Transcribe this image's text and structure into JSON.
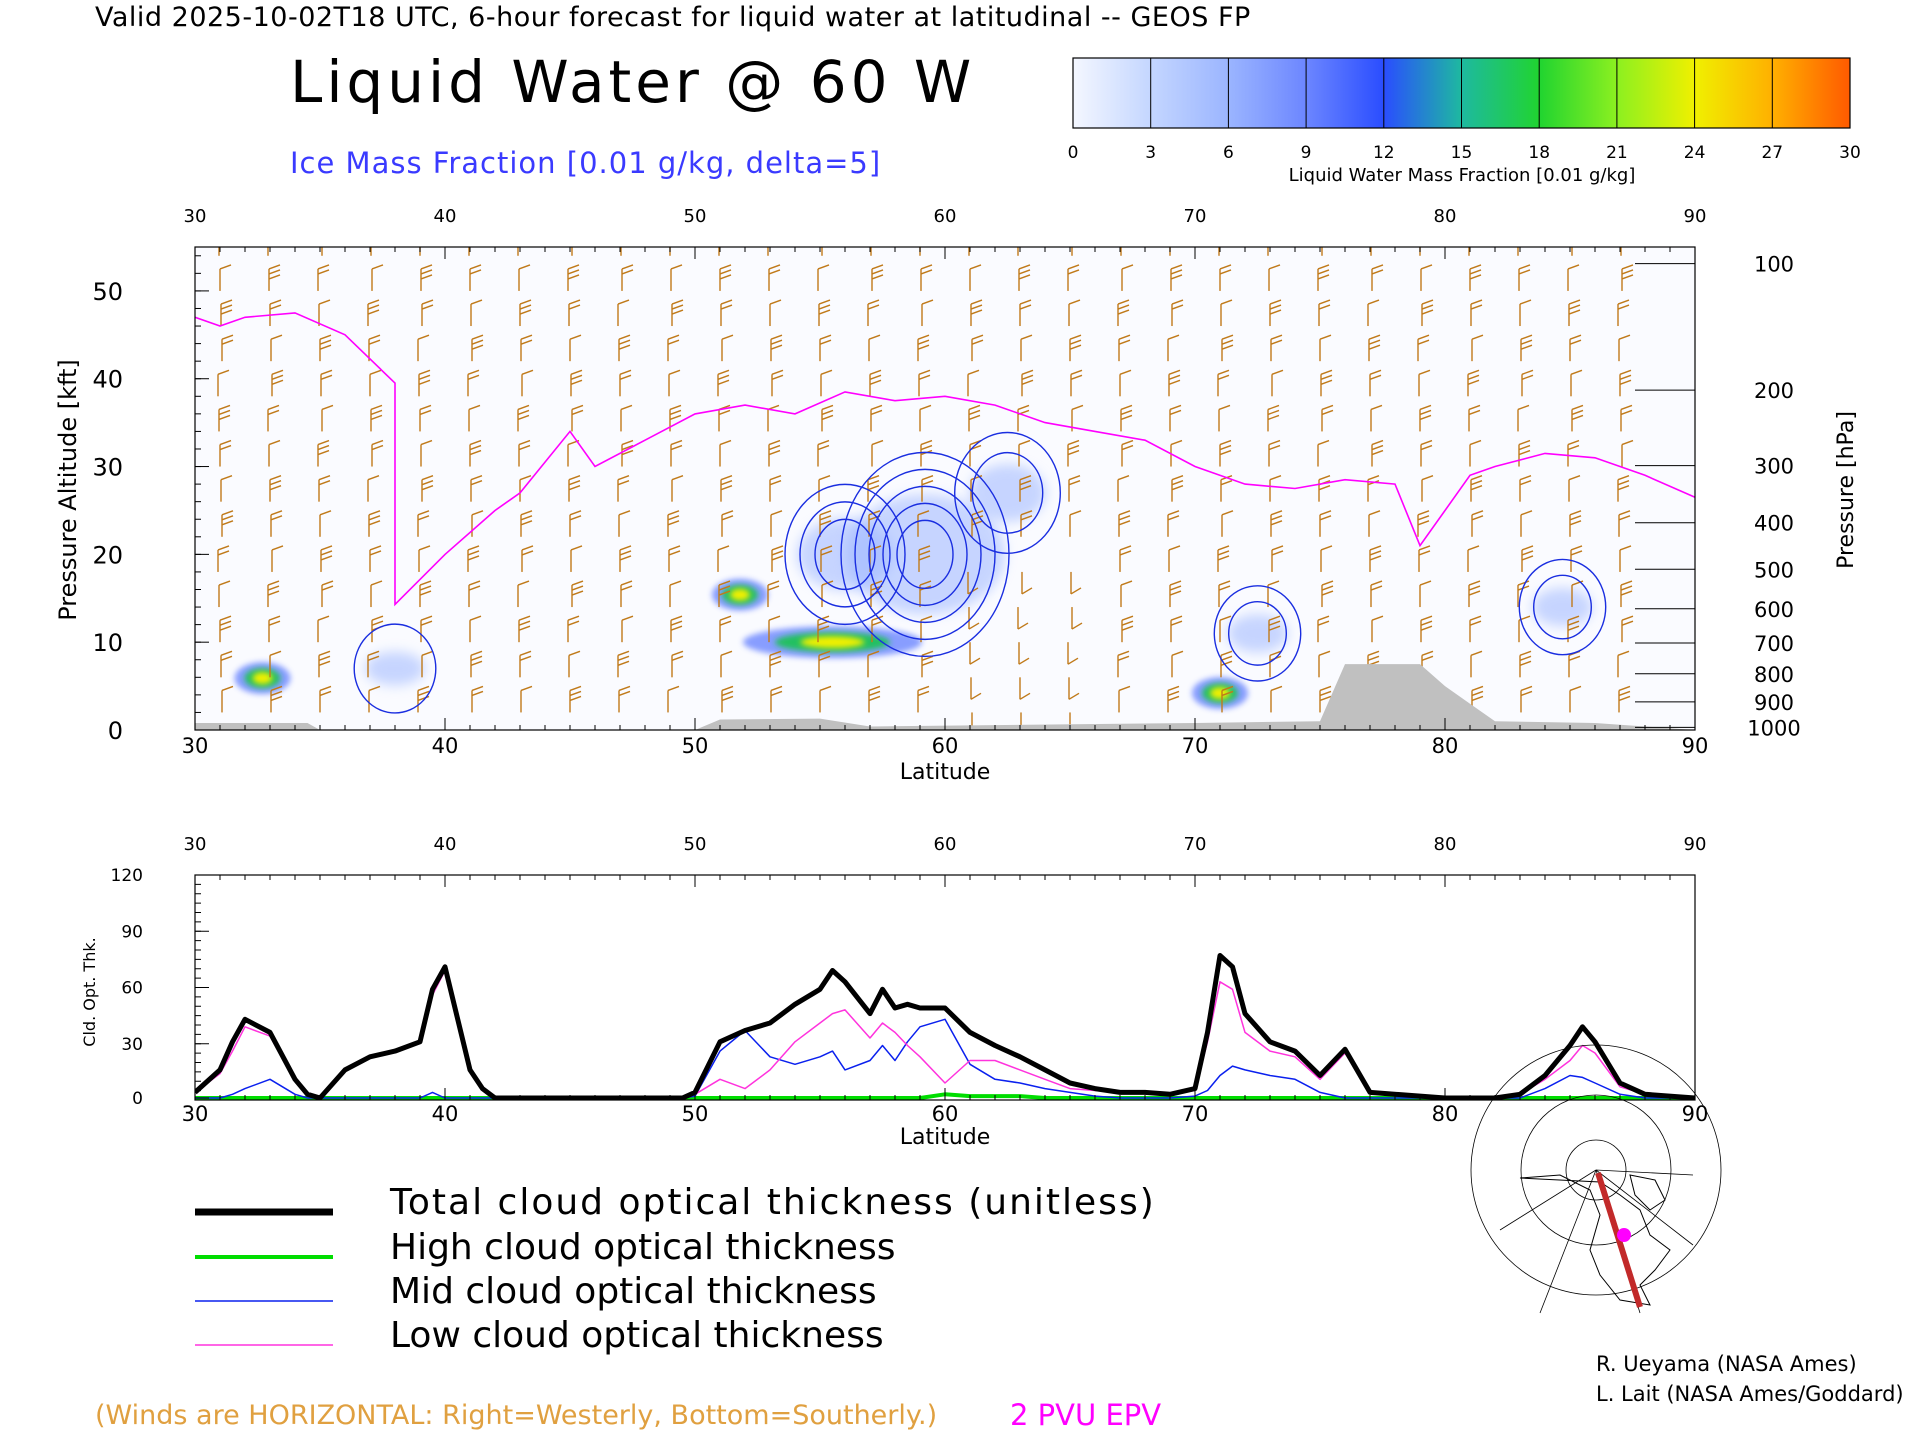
{
  "header": {
    "valid_line": "Valid 2025-10-02T18 UTC, 6-hour forecast for liquid water at latitudinal -- GEOS FP",
    "title": "Liquid Water @ 60 W",
    "subtitle": "Ice Mass Fraction [0.01 g/kg, delta=5]"
  },
  "colorbar": {
    "ticks": [
      "0",
      "3",
      "6",
      "9",
      "12",
      "15",
      "18",
      "21",
      "24",
      "27",
      "30"
    ],
    "label": "Liquid Water Mass Fraction [0.01 g/kg]",
    "colors": [
      "#f4f7ff",
      "#c4d6ff",
      "#9bb5ff",
      "#6c86ff",
      "#2a4dff",
      "#1eb9a0",
      "#20d430",
      "#8cf020",
      "#f0f000",
      "#ffb000",
      "#ff5a00"
    ]
  },
  "colors": {
    "wind_barbs": "#c07a1a",
    "epv": "#ff00ff",
    "ice_contour": "#1a2ee0",
    "total": "#000000",
    "high": "#00dd00",
    "mid": "#0a20ee",
    "low": "#ff33dd"
  },
  "chart_data": [
    {
      "type": "heatmap",
      "title": "Liquid Water @ 60 W",
      "xlabel": "Latitude",
      "ylabel": "Pressure Altitude [kft]",
      "ylabel_right": "Pressure [hPa]",
      "xlim": [
        30,
        90
      ],
      "ylim": [
        0,
        55
      ],
      "x_ticks": [
        30,
        40,
        50,
        60,
        70,
        80,
        90
      ],
      "y_ticks": [
        0,
        10,
        20,
        30,
        40,
        50
      ],
      "pressure_ticks": [
        {
          "label": "100",
          "kft": 53.1
        },
        {
          "label": "200",
          "kft": 38.7
        },
        {
          "label": "300",
          "kft": 30.1
        },
        {
          "label": "400",
          "kft": 23.6
        },
        {
          "label": "500",
          "kft": 18.3
        },
        {
          "label": "600",
          "kft": 13.8
        },
        {
          "label": "700",
          "kft": 9.9
        },
        {
          "label": "800",
          "kft": 6.4
        },
        {
          "label": "900",
          "kft": 3.2
        },
        {
          "label": "1000",
          "kft": 0.3
        }
      ],
      "liquid_water_cores": [
        {
          "lat": 32.7,
          "kft": 5.9,
          "max": 24
        },
        {
          "lat": 51.8,
          "kft": 15.4,
          "max": 24
        },
        {
          "lat": 55.5,
          "kft": 10.0,
          "max": 24
        },
        {
          "lat": 71.0,
          "kft": 4.2,
          "max": 21
        }
      ],
      "ice_cores": [
        {
          "lat": 38.0,
          "kft": 7.0,
          "max": 7
        },
        {
          "lat": 56.0,
          "kft": 20.0,
          "max": 15
        },
        {
          "lat": 59.2,
          "kft": 20.0,
          "max": 25
        },
        {
          "lat": 62.5,
          "kft": 27.0,
          "max": 12
        },
        {
          "lat": 72.5,
          "kft": 11.0,
          "max": 8
        },
        {
          "lat": 84.7,
          "kft": 14.0,
          "max": 8
        }
      ],
      "epv_2pvu_kft": [
        {
          "lat": 30,
          "kft": 47.0
        },
        {
          "lat": 31,
          "kft": 46.0
        },
        {
          "lat": 32,
          "kft": 47.0
        },
        {
          "lat": 34,
          "kft": 47.5
        },
        {
          "lat": 36,
          "kft": 45.0
        },
        {
          "lat": 38,
          "kft": 39.5
        },
        {
          "lat": 38,
          "kft": 14.3
        },
        {
          "lat": 40,
          "kft": 20.0
        },
        {
          "lat": 42,
          "kft": 25.0
        },
        {
          "lat": 43,
          "kft": 27.0
        },
        {
          "lat": 45,
          "kft": 34.0
        },
        {
          "lat": 46,
          "kft": 30.0
        },
        {
          "lat": 48,
          "kft": 33.0
        },
        {
          "lat": 50,
          "kft": 36.0
        },
        {
          "lat": 52,
          "kft": 37.0
        },
        {
          "lat": 54,
          "kft": 36.0
        },
        {
          "lat": 56,
          "kft": 38.5
        },
        {
          "lat": 58,
          "kft": 37.5
        },
        {
          "lat": 60,
          "kft": 38.0
        },
        {
          "lat": 62,
          "kft": 37.0
        },
        {
          "lat": 64,
          "kft": 35.0
        },
        {
          "lat": 66,
          "kft": 34.0
        },
        {
          "lat": 68,
          "kft": 33.0
        },
        {
          "lat": 70,
          "kft": 30.0
        },
        {
          "lat": 72,
          "kft": 28.0
        },
        {
          "lat": 74,
          "kft": 27.5
        },
        {
          "lat": 76,
          "kft": 28.5
        },
        {
          "lat": 78,
          "kft": 28.0
        },
        {
          "lat": 79,
          "kft": 21.0
        },
        {
          "lat": 80,
          "kft": 25.0
        },
        {
          "lat": 81,
          "kft": 29.0
        },
        {
          "lat": 82,
          "kft": 30.0
        },
        {
          "lat": 84,
          "kft": 31.5
        },
        {
          "lat": 86,
          "kft": 31.0
        },
        {
          "lat": 88,
          "kft": 29.0
        },
        {
          "lat": 90,
          "kft": 26.5
        }
      ],
      "terrain_kft": [
        {
          "lat": 30,
          "kft": 0.8
        },
        {
          "lat": 34.5,
          "kft": 0.8
        },
        {
          "lat": 35,
          "kft": 0.0
        },
        {
          "lat": 50,
          "kft": 0.0
        },
        {
          "lat": 51,
          "kft": 1.2
        },
        {
          "lat": 55,
          "kft": 1.3
        },
        {
          "lat": 57,
          "kft": 0.4
        },
        {
          "lat": 70,
          "kft": 0.8
        },
        {
          "lat": 75,
          "kft": 1.0
        },
        {
          "lat": 76,
          "kft": 7.5
        },
        {
          "lat": 79,
          "kft": 7.5
        },
        {
          "lat": 80,
          "kft": 5.0
        },
        {
          "lat": 81,
          "kft": 3.0
        },
        {
          "lat": 82,
          "kft": 1.0
        },
        {
          "lat": 86,
          "kft": 0.8
        },
        {
          "lat": 90,
          "kft": 0.0
        }
      ]
    },
    {
      "type": "line",
      "xlabel": "Latitude",
      "ylabel": "Cld. Opt. Thk.",
      "xlim": [
        30,
        90
      ],
      "ylim": [
        0,
        120
      ],
      "x_ticks": [
        30,
        40,
        50,
        60,
        70,
        80,
        90
      ],
      "y_ticks": [
        0,
        30,
        60,
        90,
        120
      ],
      "x": [
        30,
        31,
        31.5,
        32,
        33,
        34,
        34.5,
        35,
        36,
        37,
        38,
        39,
        39.5,
        40,
        41,
        41.5,
        42,
        45,
        48,
        49.5,
        50,
        51,
        52,
        53,
        54,
        55,
        55.5,
        56,
        57,
        57.5,
        58,
        58.5,
        59,
        60,
        61,
        62,
        63,
        64,
        65,
        66,
        67,
        68,
        69,
        70,
        70.5,
        71,
        71.5,
        72,
        73,
        74,
        75,
        76,
        77,
        80,
        82,
        83,
        84,
        85,
        85.5,
        86,
        87,
        88,
        90
      ],
      "series": [
        {
          "name": "Total cloud optical thickness (unitless)",
          "values": [
            3,
            15,
            30,
            42,
            35,
            10,
            2,
            0,
            15,
            22,
            25,
            30,
            58,
            70,
            15,
            5,
            0,
            0,
            0,
            0,
            3,
            30,
            36,
            40,
            50,
            58,
            68,
            62,
            45,
            58,
            48,
            50,
            48,
            48,
            35,
            28,
            22,
            15,
            8,
            5,
            3,
            3,
            2,
            5,
            35,
            76,
            70,
            45,
            30,
            25,
            12,
            26,
            3,
            0,
            0,
            2,
            12,
            28,
            38,
            30,
            8,
            2,
            0
          ]
        },
        {
          "name": "High cloud optical thickness",
          "values": [
            0,
            0,
            0,
            0,
            0,
            0,
            0,
            0,
            0,
            0,
            0,
            0,
            0,
            0,
            0,
            0,
            0,
            0,
            0,
            0,
            0,
            0,
            0,
            0,
            0,
            0,
            0,
            0,
            0,
            0,
            0,
            0,
            0,
            2,
            1,
            1,
            1,
            0,
            0,
            0,
            0,
            0,
            0,
            0,
            0,
            0,
            0,
            0,
            0,
            0,
            0,
            0,
            0,
            0,
            0,
            0,
            0,
            0,
            0,
            0,
            0,
            0,
            0
          ]
        },
        {
          "name": "Mid cloud optical thickness",
          "values": [
            0,
            0,
            2,
            5,
            10,
            2,
            0,
            0,
            0,
            0,
            0,
            0,
            3,
            0,
            0,
            0,
            0,
            0,
            0,
            0,
            1,
            25,
            36,
            22,
            18,
            22,
            25,
            15,
            20,
            28,
            20,
            30,
            38,
            42,
            18,
            10,
            8,
            5,
            3,
            1,
            0,
            0,
            0,
            1,
            4,
            12,
            17,
            15,
            12,
            10,
            3,
            0,
            0,
            0,
            0,
            0,
            5,
            12,
            11,
            8,
            2,
            0,
            0
          ]
        },
        {
          "name": "Low cloud optical thickness",
          "values": [
            3,
            13,
            25,
            38,
            33,
            9,
            2,
            0,
            15,
            22,
            25,
            30,
            55,
            68,
            15,
            5,
            0,
            0,
            0,
            0,
            2,
            10,
            5,
            15,
            30,
            40,
            45,
            47,
            32,
            40,
            35,
            28,
            22,
            8,
            20,
            20,
            15,
            10,
            5,
            4,
            3,
            3,
            2,
            4,
            30,
            62,
            58,
            35,
            25,
            22,
            10,
            24,
            3,
            0,
            0,
            2,
            10,
            20,
            28,
            24,
            6,
            2,
            0
          ]
        }
      ]
    }
  ],
  "legend": {
    "items": [
      {
        "label": "Total cloud optical thickness (unitless)",
        "color": "#000000"
      },
      {
        "label": "High cloud optical thickness",
        "color": "#33dd33"
      },
      {
        "label": "Mid cloud optical thickness",
        "color": "#3a3aff"
      },
      {
        "label": "Low cloud optical thickness",
        "color": "#ff33dd"
      }
    ]
  },
  "footer": {
    "winds_note": "(Winds are HORIZONTAL: Right=Westerly, Bottom=Southerly.)",
    "epv_note": "2 PVU EPV",
    "credit1": "R. Ueyama (NASA Ames)",
    "credit2": "L. Lait (NASA Ames/Goddard)"
  }
}
